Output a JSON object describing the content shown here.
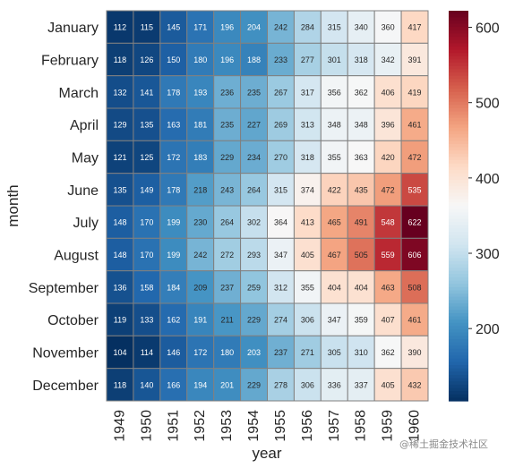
{
  "chart_data": {
    "type": "heatmap",
    "xlabel": "year",
    "ylabel": "month",
    "x": [
      "1949",
      "1950",
      "1951",
      "1952",
      "1953",
      "1954",
      "1955",
      "1956",
      "1957",
      "1958",
      "1959",
      "1960"
    ],
    "y": [
      "January",
      "February",
      "March",
      "April",
      "May",
      "June",
      "July",
      "August",
      "September",
      "October",
      "November",
      "December"
    ],
    "values": [
      [
        112,
        115,
        145,
        171,
        196,
        204,
        242,
        284,
        315,
        340,
        360,
        417
      ],
      [
        118,
        126,
        150,
        180,
        196,
        188,
        233,
        277,
        301,
        318,
        342,
        391
      ],
      [
        132,
        141,
        178,
        193,
        236,
        235,
        267,
        317,
        356,
        362,
        406,
        419
      ],
      [
        129,
        135,
        163,
        181,
        235,
        227,
        269,
        313,
        348,
        348,
        396,
        461
      ],
      [
        121,
        125,
        172,
        183,
        229,
        234,
        270,
        318,
        355,
        363,
        420,
        472
      ],
      [
        135,
        149,
        178,
        218,
        243,
        264,
        315,
        374,
        422,
        435,
        472,
        535
      ],
      [
        148,
        170,
        199,
        230,
        264,
        302,
        364,
        413,
        465,
        491,
        548,
        622
      ],
      [
        148,
        170,
        199,
        242,
        272,
        293,
        347,
        405,
        467,
        505,
        559,
        606
      ],
      [
        136,
        158,
        184,
        209,
        237,
        259,
        312,
        355,
        404,
        404,
        463,
        508
      ],
      [
        119,
        133,
        162,
        191,
        211,
        229,
        274,
        306,
        347,
        359,
        407,
        461
      ],
      [
        104,
        114,
        146,
        172,
        180,
        203,
        237,
        271,
        305,
        310,
        362,
        390
      ],
      [
        118,
        140,
        166,
        194,
        201,
        229,
        278,
        306,
        336,
        337,
        405,
        432
      ]
    ],
    "colormap": "RdBu_r",
    "vmin": 104,
    "vmax": 622,
    "colorbar_ticks": [
      200,
      300,
      400,
      500,
      600
    ],
    "annotate": true,
    "cell_border_color": "#808080"
  },
  "watermark": "@稀土掘金技术社区"
}
